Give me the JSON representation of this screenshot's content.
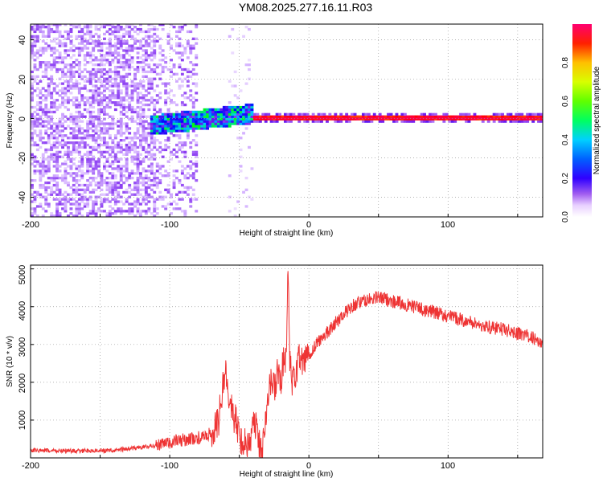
{
  "chart_data": [
    {
      "type": "heatmap",
      "title": "YM08.2025.277.16.11.R03",
      "xlabel": "Height of straight line (km)",
      "ylabel": "Frequency (Hz)",
      "xlim": [
        -200,
        168
      ],
      "ylim": [
        -50,
        48
      ],
      "x_ticks": [
        "-200",
        "-100",
        "0",
        "100"
      ],
      "y_ticks": [
        "40",
        "20",
        "0",
        "-20",
        "-40"
      ],
      "colorbar": {
        "label": "Normalized spectral amplitude",
        "range": [
          0.0,
          1.0
        ],
        "ticks": [
          "0.0",
          "0.2",
          "0.4",
          "0.6",
          "0.8"
        ],
        "colormap": [
          "#ffffff",
          "#cfa8ff",
          "#7a22ee",
          "#0000ff",
          "#00c8ff",
          "#00ff00",
          "#c8ff00",
          "#ffcc00",
          "#ff0000",
          "#ff0080"
        ]
      },
      "regions": [
        {
          "x_range": [
            -200,
            -80
          ],
          "freq_range": [
            -50,
            48
          ],
          "amplitude": 0.12
        },
        {
          "x_range": [
            -115,
            -40
          ],
          "freq_range": [
            -8,
            6
          ],
          "amplitude": 0.35
        },
        {
          "x_range": [
            -40,
            168
          ],
          "freq_range": [
            -2,
            2
          ],
          "amplitude": 0.92
        }
      ],
      "grid": true
    },
    {
      "type": "line",
      "xlabel": "Height of straight line (km)",
      "ylabel": "SNR (10 * v/v)",
      "xlim": [
        -200,
        168
      ],
      "ylim": [
        0,
        5100
      ],
      "x_ticks": [
        "-200",
        "-100",
        "0",
        "100"
      ],
      "y_ticks": [
        "5000",
        "4000",
        "3000",
        "2000",
        "1000"
      ],
      "color": "#ee3333",
      "grid": true,
      "x": [
        -200,
        -170,
        -140,
        -120,
        -105,
        -95,
        -85,
        -75,
        -70,
        -65,
        -62,
        -60,
        -57,
        -55,
        -52,
        -50,
        -48,
        -45,
        -42,
        -40,
        -37,
        -35,
        -33,
        -30,
        -27,
        -25,
        -22,
        -20,
        -18,
        -17,
        -16,
        -15,
        -14,
        -12,
        -10,
        -7,
        -5,
        0,
        5,
        10,
        15,
        20,
        25,
        30,
        35,
        40,
        45,
        50,
        55,
        60,
        70,
        80,
        90,
        100,
        110,
        120,
        130,
        140,
        150,
        155,
        160,
        165,
        168
      ],
      "y": [
        200,
        180,
        200,
        280,
        350,
        450,
        500,
        550,
        650,
        950,
        1800,
        2400,
        1600,
        1200,
        900,
        600,
        450,
        350,
        500,
        1000,
        700,
        200,
        400,
        1600,
        2100,
        1800,
        2300,
        2100,
        2600,
        2400,
        2900,
        5100,
        2700,
        1900,
        2200,
        2600,
        2500,
        2700,
        3000,
        3200,
        3400,
        3600,
        3800,
        4000,
        4100,
        4150,
        4200,
        4250,
        4200,
        4150,
        4050,
        3950,
        3850,
        3750,
        3650,
        3550,
        3450,
        3400,
        3300,
        3250,
        3200,
        3100,
        2950
      ]
    }
  ]
}
